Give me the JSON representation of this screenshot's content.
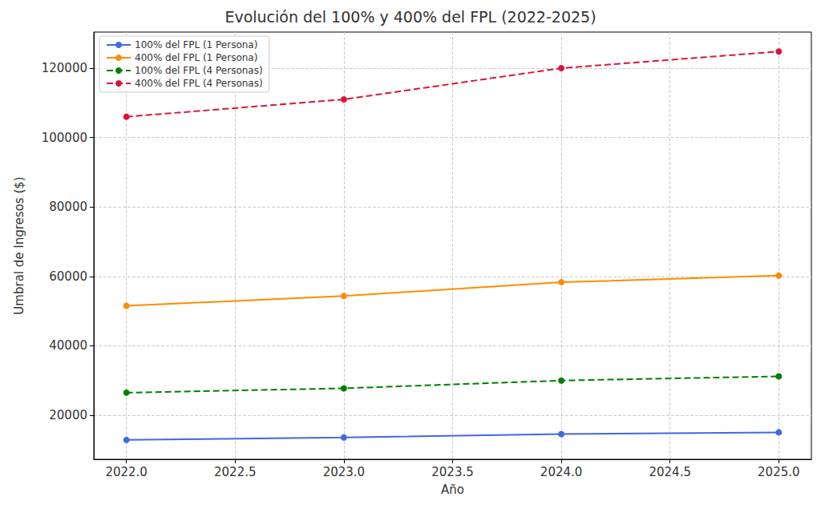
{
  "chart_data": {
    "type": "line",
    "title": "Evolución del 100% y 400% del FPL (2022-2025)",
    "x_label": "Año",
    "y_label": "Umbral de Ingresos ($)",
    "x": [
      2022,
      2023,
      2024,
      2025
    ],
    "series": [
      {
        "name": "100% del FPL (1 Persona)",
        "color": "#4169e1",
        "values": [
          12880,
          13590,
          14580,
          15060
        ],
        "marker": "circle",
        "line_style": "solid"
      },
      {
        "name": "400% del FPL (1 Persona)",
        "color": "#ff8c00",
        "values": [
          51520,
          54360,
          58320,
          60240
        ],
        "marker": "circle",
        "line_style": "solid"
      },
      {
        "name": "100% del FPL (4 Personas)",
        "color": "#008000",
        "values": [
          26500,
          27750,
          30000,
          31200
        ],
        "marker": "circle",
        "line_style": "dashed"
      },
      {
        "name": "400% del FPL (4 Personas)",
        "color": "#dc143c",
        "values": [
          106000,
          111000,
          120000,
          124800
        ],
        "marker": "circle",
        "line_style": "dashed"
      }
    ],
    "xlim": [
      2021.85,
      2025.15
    ],
    "xticks": [
      {
        "value": 2022,
        "label": "2022.0"
      },
      {
        "value": 2022.5,
        "label": "2022.5"
      },
      {
        "value": 2023,
        "label": "2023.0"
      },
      {
        "value": 2023.5,
        "label": "2023.5"
      },
      {
        "value": 2024,
        "label": "2024.0"
      },
      {
        "value": 2024.5,
        "label": "2024.5"
      },
      {
        "value": 2025,
        "label": "2025.0"
      }
    ],
    "ylim": [
      7300,
      130400
    ],
    "yticks": [
      20000,
      40000,
      60000,
      80000,
      100000,
      120000
    ],
    "grid": true,
    "legend": "upper left"
  }
}
